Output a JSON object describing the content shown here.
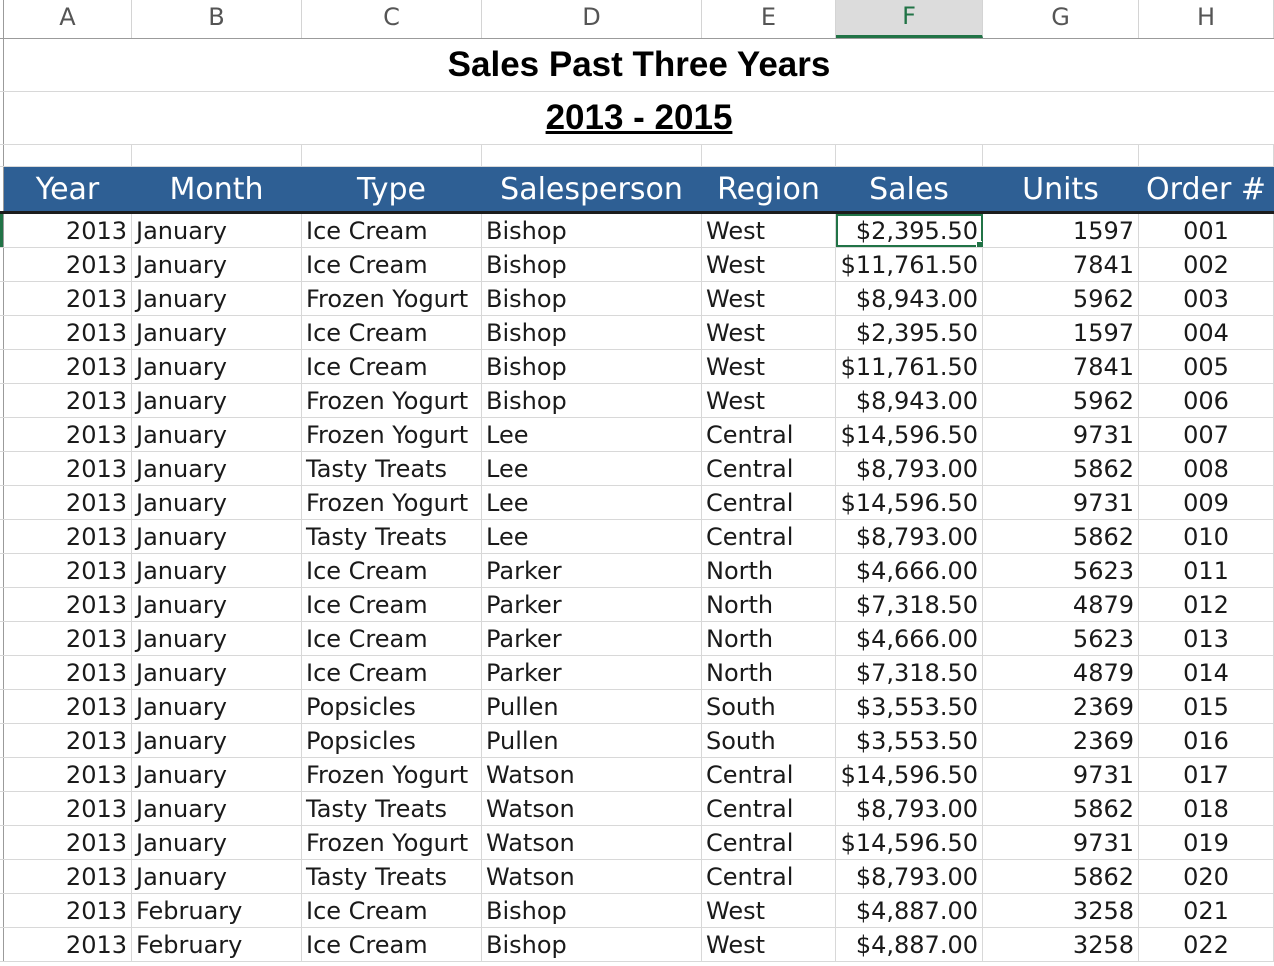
{
  "columns": [
    "A",
    "B",
    "C",
    "D",
    "E",
    "F",
    "G",
    "H"
  ],
  "selected_column": "F",
  "title": "Sales Past Three Years",
  "subtitle": "2013 - 2015",
  "headers": [
    "Year",
    "Month",
    "Type",
    "Salesperson",
    "Region",
    "Sales",
    "Units",
    "Order #"
  ],
  "rows": [
    [
      "2013",
      "January",
      "Ice Cream",
      "Bishop",
      "West",
      "$2,395.50",
      "1597",
      "001"
    ],
    [
      "2013",
      "January",
      "Ice Cream",
      "Bishop",
      "West",
      "$11,761.50",
      "7841",
      "002"
    ],
    [
      "2013",
      "January",
      "Frozen Yogurt",
      "Bishop",
      "West",
      "$8,943.00",
      "5962",
      "003"
    ],
    [
      "2013",
      "January",
      "Ice Cream",
      "Bishop",
      "West",
      "$2,395.50",
      "1597",
      "004"
    ],
    [
      "2013",
      "January",
      "Ice Cream",
      "Bishop",
      "West",
      "$11,761.50",
      "7841",
      "005"
    ],
    [
      "2013",
      "January",
      "Frozen Yogurt",
      "Bishop",
      "West",
      "$8,943.00",
      "5962",
      "006"
    ],
    [
      "2013",
      "January",
      "Frozen Yogurt",
      "Lee",
      "Central",
      "$14,596.50",
      "9731",
      "007"
    ],
    [
      "2013",
      "January",
      "Tasty Treats",
      "Lee",
      "Central",
      "$8,793.00",
      "5862",
      "008"
    ],
    [
      "2013",
      "January",
      "Frozen Yogurt",
      "Lee",
      "Central",
      "$14,596.50",
      "9731",
      "009"
    ],
    [
      "2013",
      "January",
      "Tasty Treats",
      "Lee",
      "Central",
      "$8,793.00",
      "5862",
      "010"
    ],
    [
      "2013",
      "January",
      "Ice Cream",
      "Parker",
      "North",
      "$4,666.00",
      "5623",
      "011"
    ],
    [
      "2013",
      "January",
      "Ice Cream",
      "Parker",
      "North",
      "$7,318.50",
      "4879",
      "012"
    ],
    [
      "2013",
      "January",
      "Ice Cream",
      "Parker",
      "North",
      "$4,666.00",
      "5623",
      "013"
    ],
    [
      "2013",
      "January",
      "Ice Cream",
      "Parker",
      "North",
      "$7,318.50",
      "4879",
      "014"
    ],
    [
      "2013",
      "January",
      "Popsicles",
      "Pullen",
      "South",
      "$3,553.50",
      "2369",
      "015"
    ],
    [
      "2013",
      "January",
      "Popsicles",
      "Pullen",
      "South",
      "$3,553.50",
      "2369",
      "016"
    ],
    [
      "2013",
      "January",
      "Frozen Yogurt",
      "Watson",
      "Central",
      "$14,596.50",
      "9731",
      "017"
    ],
    [
      "2013",
      "January",
      "Tasty Treats",
      "Watson",
      "Central",
      "$8,793.00",
      "5862",
      "018"
    ],
    [
      "2013",
      "January",
      "Frozen Yogurt",
      "Watson",
      "Central",
      "$14,596.50",
      "9731",
      "019"
    ],
    [
      "2013",
      "January",
      "Tasty Treats",
      "Watson",
      "Central",
      "$8,793.00",
      "5862",
      "020"
    ],
    [
      "2013",
      "February",
      "Ice Cream",
      "Bishop",
      "West",
      "$4,887.00",
      "3258",
      "021"
    ],
    [
      "2013",
      "February",
      "Ice Cream",
      "Bishop",
      "West",
      "$4,887.00",
      "3258",
      "022"
    ]
  ],
  "colors": {
    "header_bg": "#2e5f94",
    "accent": "#217346"
  }
}
